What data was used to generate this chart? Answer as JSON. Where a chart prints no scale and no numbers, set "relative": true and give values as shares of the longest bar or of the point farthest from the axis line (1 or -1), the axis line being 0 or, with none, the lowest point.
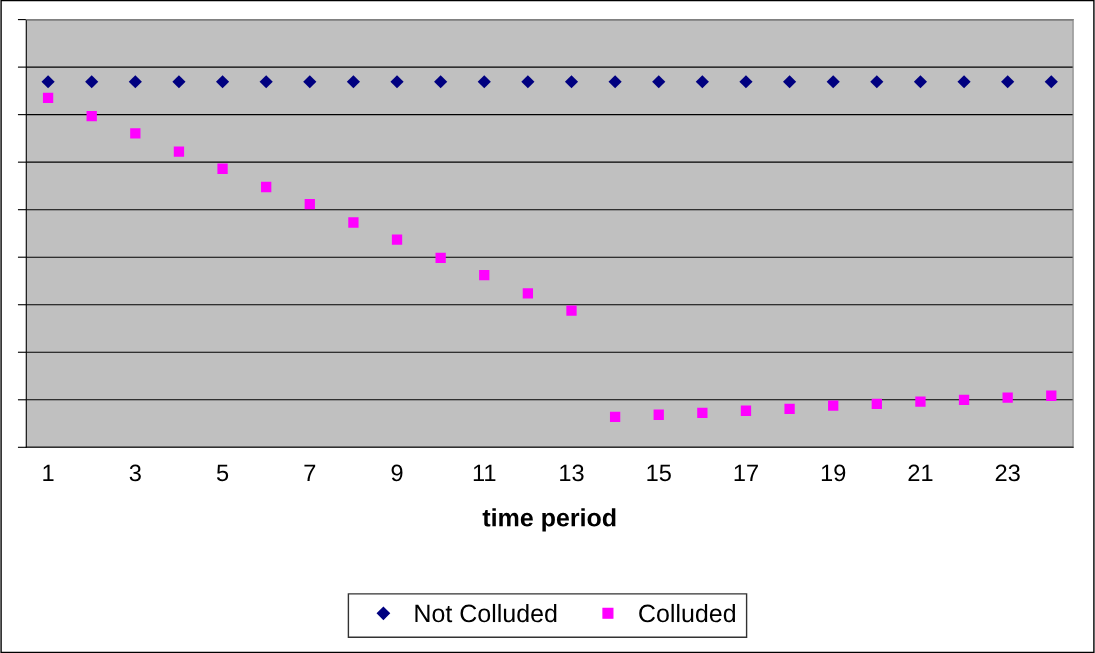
{
  "chart_data": {
    "type": "scatter",
    "relative": true,
    "xlabel": "time period",
    "categories": [
      "1",
      null,
      "3",
      null,
      "5",
      null,
      "7",
      null,
      "9",
      null,
      "11",
      null,
      "13",
      null,
      "15",
      null,
      "17",
      null,
      "19",
      null,
      "21",
      null,
      "23",
      null
    ],
    "series": [
      {
        "name": "Not Colluded",
        "color": "#000080",
        "marker": "diamond",
        "values": [
          1,
          1,
          1,
          1,
          1,
          1,
          1,
          1,
          1,
          1,
          1,
          1,
          1,
          1,
          1,
          1,
          1,
          1,
          1,
          1,
          1,
          1,
          1,
          1
        ]
      },
      {
        "name": "Colluded",
        "color": "#ff00ff",
        "marker": "square",
        "values": [
          0.956,
          0.906,
          0.859,
          0.809,
          0.762,
          0.712,
          0.665,
          0.615,
          0.568,
          0.518,
          0.471,
          0.421,
          0.374,
          0.083,
          0.089,
          0.094,
          0.1,
          0.105,
          0.114,
          0.119,
          0.125,
          0.13,
          0.136,
          0.141
        ]
      }
    ],
    "grid": "y",
    "legend": "bottom",
    "tick_labels": "x"
  }
}
